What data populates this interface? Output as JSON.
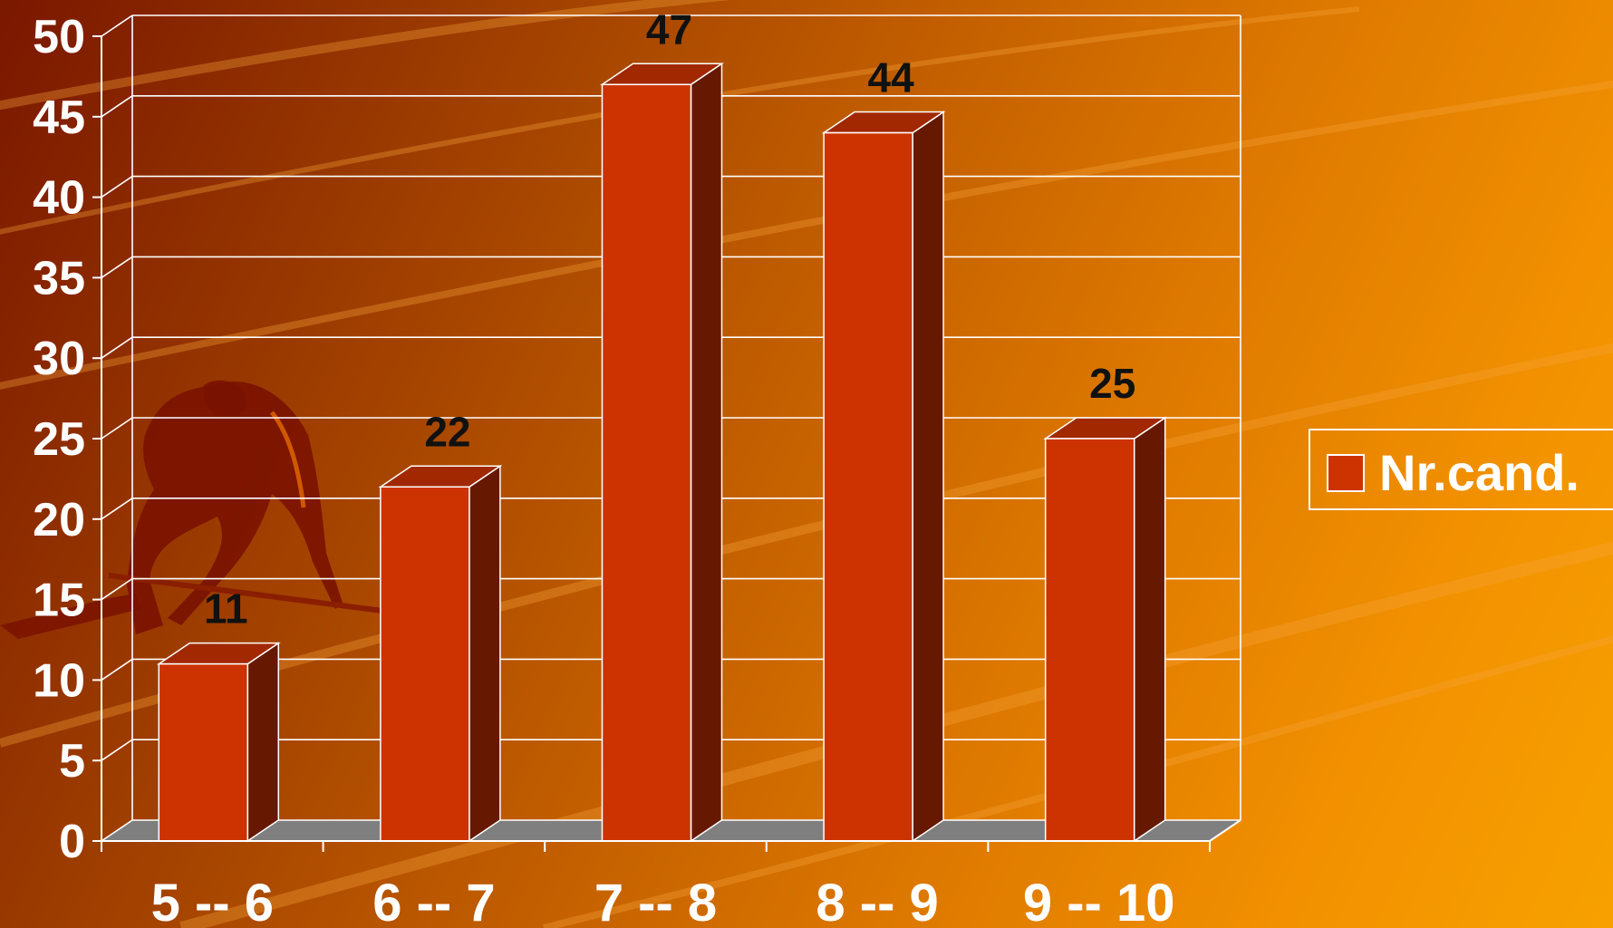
{
  "chart_data": {
    "type": "bar",
    "categories": [
      "5 -- 6",
      "6 -- 7",
      "7 -- 8",
      "8 -- 9",
      "9 -- 10"
    ],
    "series": [
      {
        "name": "Nr.cand.",
        "values": [
          11,
          22,
          47,
          44,
          25
        ]
      }
    ],
    "ylim": [
      0,
      50
    ],
    "yticks": [
      "0",
      "5",
      "10",
      "15",
      "20",
      "25",
      "30",
      "35",
      "40",
      "45",
      "50"
    ],
    "data_labels": [
      "11",
      "22",
      "47",
      "44",
      "25"
    ],
    "grid": true,
    "legend_position": "right",
    "three_d": true
  },
  "colors": {
    "bar_front": "#cc3300",
    "bar_top": "#a12800",
    "bar_side": "#661900",
    "floor": "#7f7f7f",
    "gridline": "#ffffff",
    "axis": "#ffffff",
    "tick_text": "#ffffff",
    "data_label_text": "#111111"
  },
  "decoration": {
    "background_figure": "sprinter-silhouette"
  }
}
